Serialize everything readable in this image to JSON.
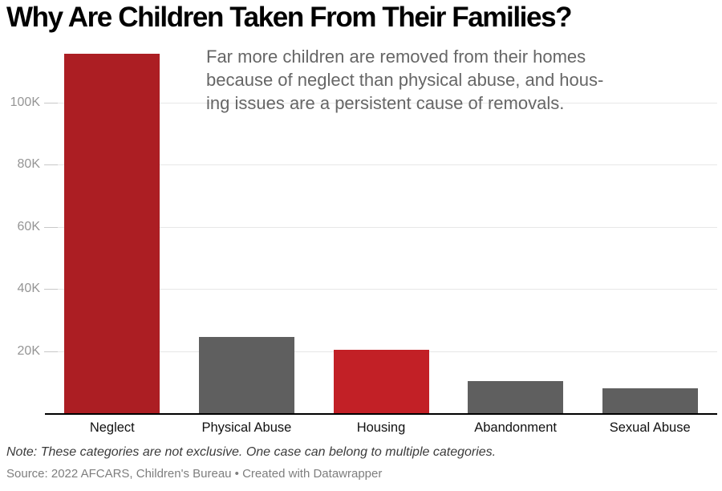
{
  "title": "Why Are Children Taken From Their Families?",
  "subtitle": "Far more children are removed from their homes\nbecause of neglect than physical abuse, and hous-\ning issues are a persistent cause of removals.",
  "note": "Note: These categories are not exclusive. One case can belong to multiple categories.",
  "source": "Source: 2022 AFCARS, Children's Bureau • Created with Datawrapper",
  "colors": {
    "highlight_red_dark": "#ac1e23",
    "highlight_red": "#c22026",
    "bar_gray": "#5f5f5f",
    "gridline": "#e7e7e7",
    "tick_stub": "#c8c8c8",
    "axis_label": "#959595",
    "baseline": "#000000"
  },
  "chart_data": {
    "type": "bar",
    "title": "Why Are Children Taken From Their Families?",
    "categories": [
      "Neglect",
      "Physical Abuse",
      "Housing",
      "Abandonment",
      "Sexual Abuse"
    ],
    "values": [
      115500,
      24600,
      20300,
      10300,
      8100
    ],
    "bar_colors": [
      "#ac1e23",
      "#5f5f5f",
      "#c22026",
      "#5f5f5f",
      "#5f5f5f"
    ],
    "xlabel": "",
    "ylabel": "",
    "ylim": [
      0,
      116000
    ],
    "yticks": [
      20000,
      40000,
      60000,
      80000,
      100000
    ],
    "ytick_labels": [
      "20K",
      "40K",
      "60K",
      "80K",
      "100K"
    ],
    "grid": true,
    "legend": false
  }
}
